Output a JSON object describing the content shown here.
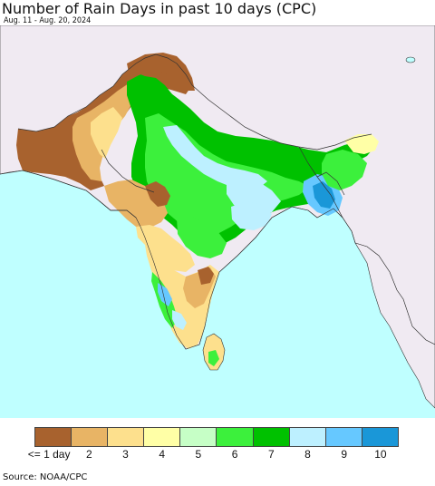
{
  "header": {
    "title": "Number of Rain Days in past 10 days (CPC)",
    "subtitle": "Aug. 11 - Aug. 20, 2024"
  },
  "legend": {
    "items": [
      {
        "label": "<= 1 day",
        "color": "#a8622e"
      },
      {
        "label": "2",
        "color": "#e8b465"
      },
      {
        "label": "3",
        "color": "#fde08d"
      },
      {
        "label": "4",
        "color": "#ffffa6"
      },
      {
        "label": "5",
        "color": "#c6ffc6"
      },
      {
        "label": "6",
        "color": "#3cf03c"
      },
      {
        "label": "7",
        "color": "#00c100"
      },
      {
        "label": "8",
        "color": "#bdf0ff"
      },
      {
        "label": "9",
        "color": "#66c8ff"
      },
      {
        "label": "10",
        "color": "#1a97d8"
      }
    ]
  },
  "map": {
    "ocean_color": "#bfffff",
    "land_outside_color": "#f0eaf2",
    "border_color": "#333333"
  },
  "footer": {
    "source": "Source: NOAA/CPC"
  }
}
